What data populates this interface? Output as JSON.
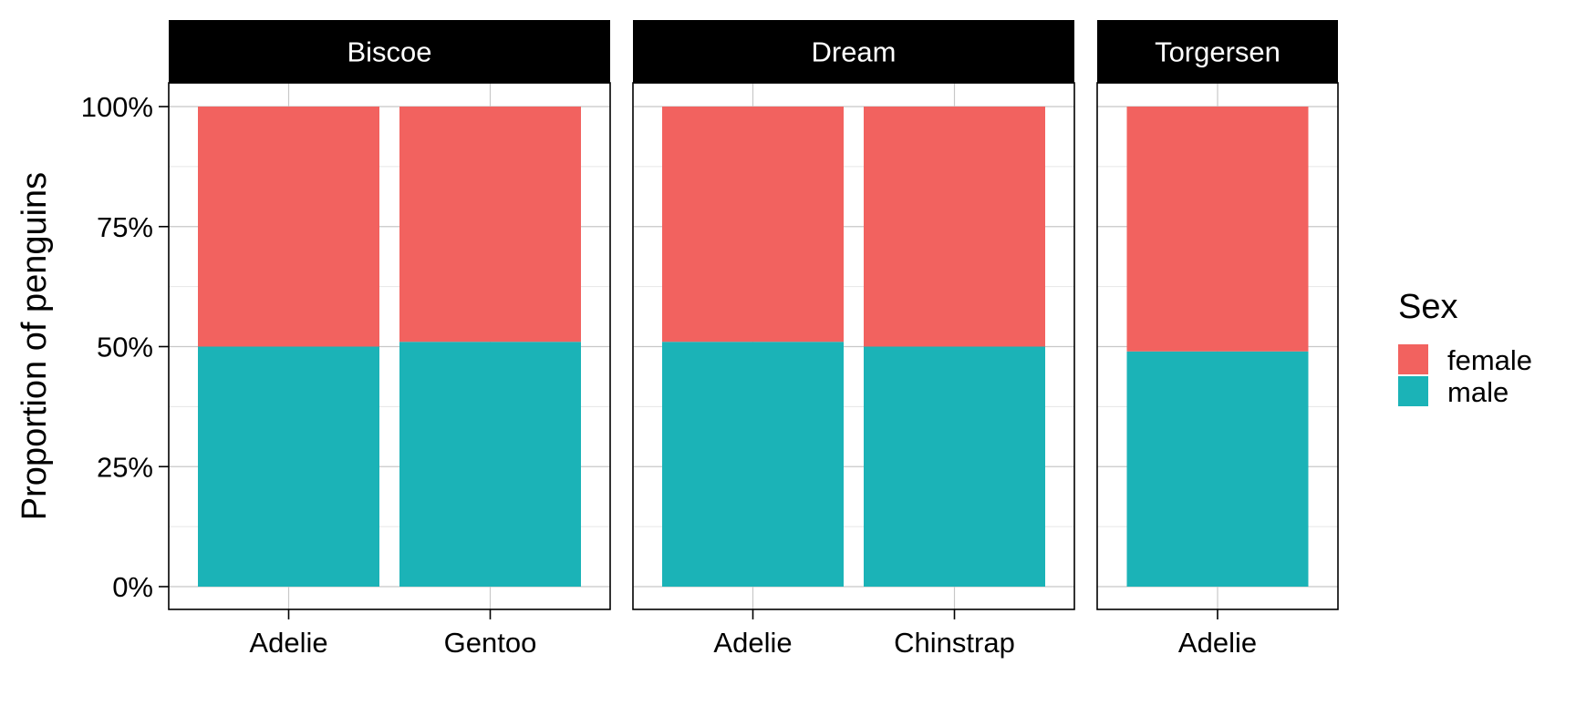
{
  "chart_data": {
    "type": "bar",
    "stacked": "proportional",
    "ylabel": "Proportion of penguins",
    "ylim": [
      0,
      1
    ],
    "yticks": [
      0,
      0.25,
      0.5,
      0.75,
      1.0
    ],
    "ytick_labels": [
      "0%",
      "25%",
      "50%",
      "75%",
      "100%"
    ],
    "grid": true,
    "legend": {
      "title": "Sex",
      "position": "right",
      "entries": [
        {
          "label": "female",
          "color": "#F2625F"
        },
        {
          "label": "male",
          "color": "#1BB3B7"
        }
      ]
    },
    "facets": [
      {
        "label": "Biscoe",
        "categories": [
          "Adelie",
          "Gentoo"
        ],
        "series": [
          {
            "name": "male",
            "values": [
              0.5,
              0.51
            ]
          },
          {
            "name": "female",
            "values": [
              0.5,
              0.49
            ]
          }
        ]
      },
      {
        "label": "Dream",
        "categories": [
          "Adelie",
          "Chinstrap"
        ],
        "series": [
          {
            "name": "male",
            "values": [
              0.51,
              0.5
            ]
          },
          {
            "name": "female",
            "values": [
              0.49,
              0.5
            ]
          }
        ]
      },
      {
        "label": "Torgersen",
        "categories": [
          "Adelie"
        ],
        "series": [
          {
            "name": "male",
            "values": [
              0.49
            ]
          },
          {
            "name": "female",
            "values": [
              0.51
            ]
          }
        ]
      }
    ]
  }
}
